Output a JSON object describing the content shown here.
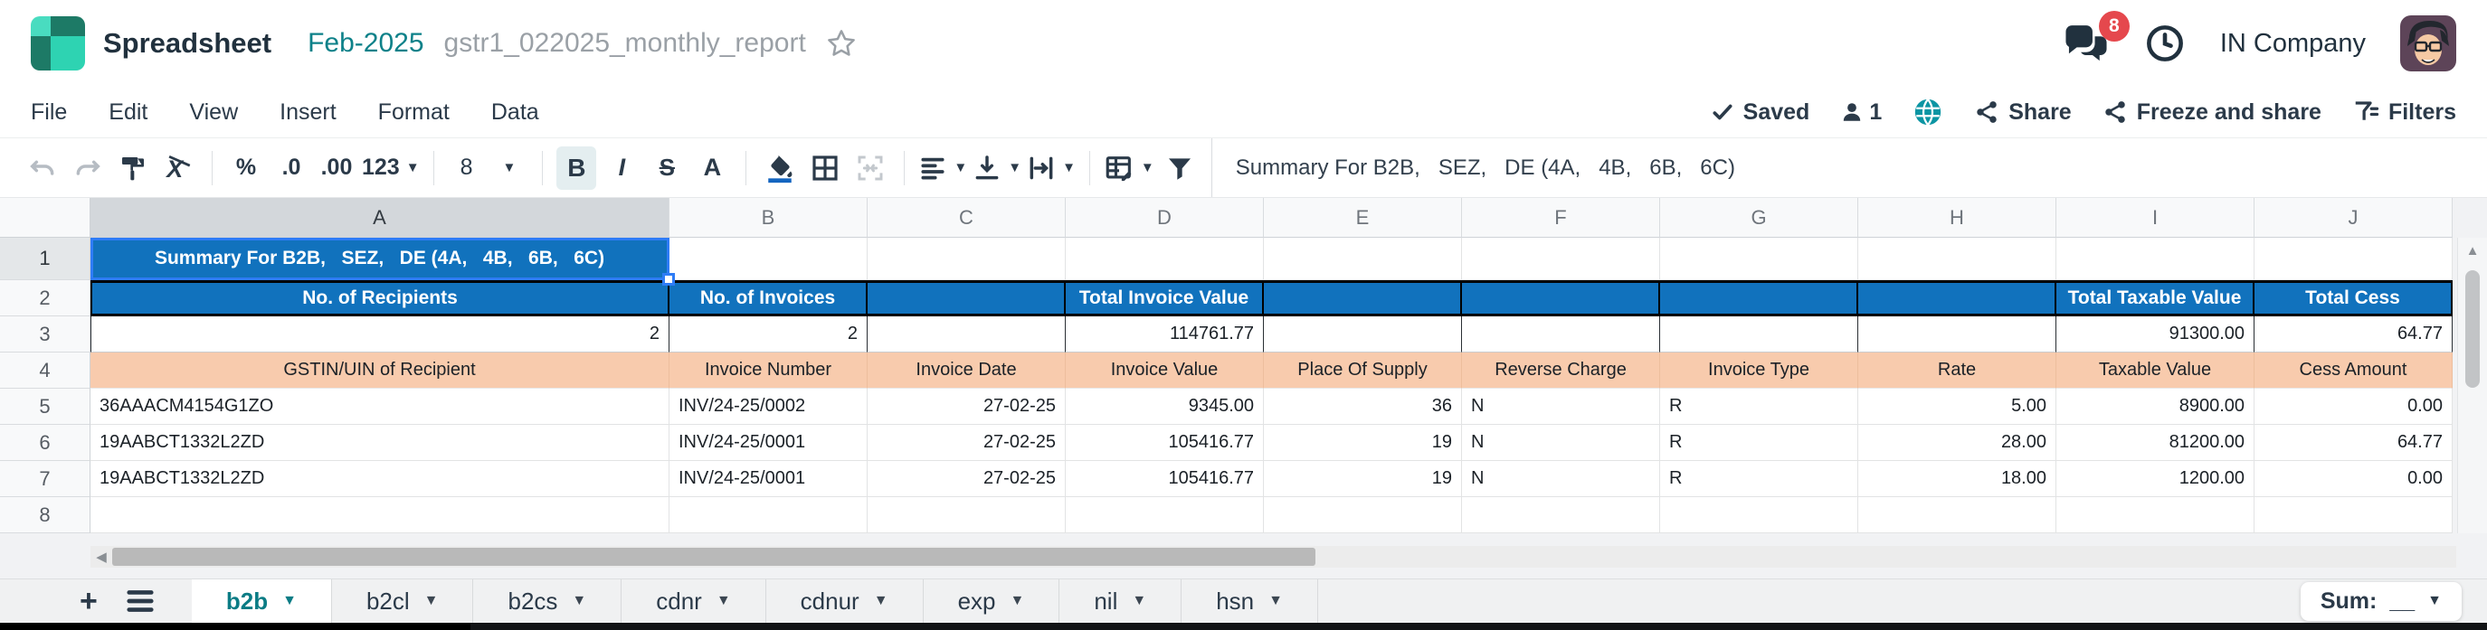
{
  "topbar": {
    "app_name": "Spreadsheet",
    "doc_tag": "Feb-2025",
    "doc_name": "gstr1_022025_monthly_report",
    "notification_count": "8",
    "company": "IN Company"
  },
  "menubar": {
    "items": [
      "File",
      "Edit",
      "View",
      "Insert",
      "Format",
      "Data"
    ],
    "saved_label": "Saved",
    "collab_count": "1",
    "share_label": "Share",
    "freeze_label": "Freeze and share",
    "filters_label": "Filters"
  },
  "toolbar": {
    "percent": "%",
    "decrease_decimal": ".0",
    "increase_decimal": ".00",
    "number_format": "123",
    "font_size": "8",
    "bold": "B",
    "italic": "I",
    "strikethrough": "S",
    "text_color": "A"
  },
  "formula_bar": {
    "value": "Summary For B2B,   SEZ,   DE (4A,   4B,   6B,   6C)"
  },
  "grid": {
    "columns": [
      "A",
      "B",
      "C",
      "D",
      "E",
      "F",
      "G",
      "H",
      "I",
      "J"
    ],
    "selected_cell": "A1",
    "body": [
      {
        "n": "1",
        "cls": "r1",
        "hsel": true,
        "cells": [
          {
            "v": "Summary For B2B,   SEZ,   DE (4A,   4B,   6B,   6C)",
            "a": "c",
            "cls": "a1"
          },
          {
            "v": ""
          },
          {
            "v": ""
          },
          {
            "v": ""
          },
          {
            "v": ""
          },
          {
            "v": ""
          },
          {
            "v": ""
          },
          {
            "v": ""
          },
          {
            "v": ""
          },
          {
            "v": ""
          }
        ]
      },
      {
        "n": "2",
        "cls": "r2",
        "cells": [
          {
            "v": "No. of Recipients",
            "a": "c"
          },
          {
            "v": "No. of Invoices",
            "a": "c"
          },
          {
            "v": ""
          },
          {
            "v": "Total Invoice Value",
            "a": "c"
          },
          {
            "v": ""
          },
          {
            "v": ""
          },
          {
            "v": ""
          },
          {
            "v": ""
          },
          {
            "v": "Total Taxable Value",
            "a": "c"
          },
          {
            "v": "Total Cess",
            "a": "c"
          }
        ]
      },
      {
        "n": "3",
        "cls": "r3",
        "cells": [
          {
            "v": "2",
            "a": "r"
          },
          {
            "v": "2",
            "a": "r"
          },
          {
            "v": ""
          },
          {
            "v": "114761.77",
            "a": "r"
          },
          {
            "v": ""
          },
          {
            "v": ""
          },
          {
            "v": ""
          },
          {
            "v": ""
          },
          {
            "v": "91300.00",
            "a": "r"
          },
          {
            "v": "64.77",
            "a": "r"
          }
        ]
      },
      {
        "n": "4",
        "cls": "r4",
        "cells": [
          {
            "v": "GSTIN/UIN of Recipient",
            "a": "c"
          },
          {
            "v": "Invoice Number",
            "a": "c"
          },
          {
            "v": "Invoice Date",
            "a": "c"
          },
          {
            "v": "Invoice Value",
            "a": "c"
          },
          {
            "v": "Place Of Supply",
            "a": "c"
          },
          {
            "v": "Reverse Charge",
            "a": "c"
          },
          {
            "v": "Invoice Type",
            "a": "c"
          },
          {
            "v": "Rate",
            "a": "c"
          },
          {
            "v": "Taxable Value",
            "a": "c"
          },
          {
            "v": "Cess Amount",
            "a": "c"
          }
        ]
      },
      {
        "n": "5",
        "cls": "rdata",
        "cells": [
          {
            "v": "36AAACM4154G1ZO",
            "a": "l"
          },
          {
            "v": "INV/24-25/0002",
            "a": "l"
          },
          {
            "v": "27-02-25",
            "a": "r"
          },
          {
            "v": "9345.00",
            "a": "r"
          },
          {
            "v": "36",
            "a": "r"
          },
          {
            "v": "N",
            "a": "l"
          },
          {
            "v": "R",
            "a": "l"
          },
          {
            "v": "5.00",
            "a": "r"
          },
          {
            "v": "8900.00",
            "a": "r"
          },
          {
            "v": "0.00",
            "a": "r"
          }
        ]
      },
      {
        "n": "6",
        "cls": "rdata",
        "cells": [
          {
            "v": "19AABCT1332L2ZD",
            "a": "l"
          },
          {
            "v": "INV/24-25/0001",
            "a": "l"
          },
          {
            "v": "27-02-25",
            "a": "r"
          },
          {
            "v": "105416.77",
            "a": "r"
          },
          {
            "v": "19",
            "a": "r"
          },
          {
            "v": "N",
            "a": "l"
          },
          {
            "v": "R",
            "a": "l"
          },
          {
            "v": "28.00",
            "a": "r"
          },
          {
            "v": "81200.00",
            "a": "r"
          },
          {
            "v": "64.77",
            "a": "r"
          }
        ]
      },
      {
        "n": "7",
        "cls": "rdata",
        "cells": [
          {
            "v": "19AABCT1332L2ZD",
            "a": "l"
          },
          {
            "v": "INV/24-25/0001",
            "a": "l"
          },
          {
            "v": "27-02-25",
            "a": "r"
          },
          {
            "v": "105416.77",
            "a": "r"
          },
          {
            "v": "19",
            "a": "r"
          },
          {
            "v": "N",
            "a": "l"
          },
          {
            "v": "R",
            "a": "l"
          },
          {
            "v": "18.00",
            "a": "r"
          },
          {
            "v": "1200.00",
            "a": "r"
          },
          {
            "v": "0.00",
            "a": "r"
          }
        ]
      },
      {
        "n": "8",
        "cls": "rempty",
        "cells": [
          {
            "v": ""
          },
          {
            "v": ""
          },
          {
            "v": ""
          },
          {
            "v": ""
          },
          {
            "v": ""
          },
          {
            "v": ""
          },
          {
            "v": ""
          },
          {
            "v": ""
          },
          {
            "v": ""
          },
          {
            "v": ""
          }
        ]
      }
    ]
  },
  "sheet_tabs": {
    "tabs": [
      "b2b",
      "b2cl",
      "b2cs",
      "cdnr",
      "cdnur",
      "exp",
      "nil",
      "hsn"
    ],
    "active_tab": "b2b",
    "sum_label": "Sum:",
    "sum_value": "__"
  },
  "colors": {
    "accent_teal": "#0d8189",
    "header_blue": "#1172bd",
    "band_peach": "#f8cbad",
    "badge_red": "#e5484d",
    "selection_blue": "#2e7cf6"
  }
}
